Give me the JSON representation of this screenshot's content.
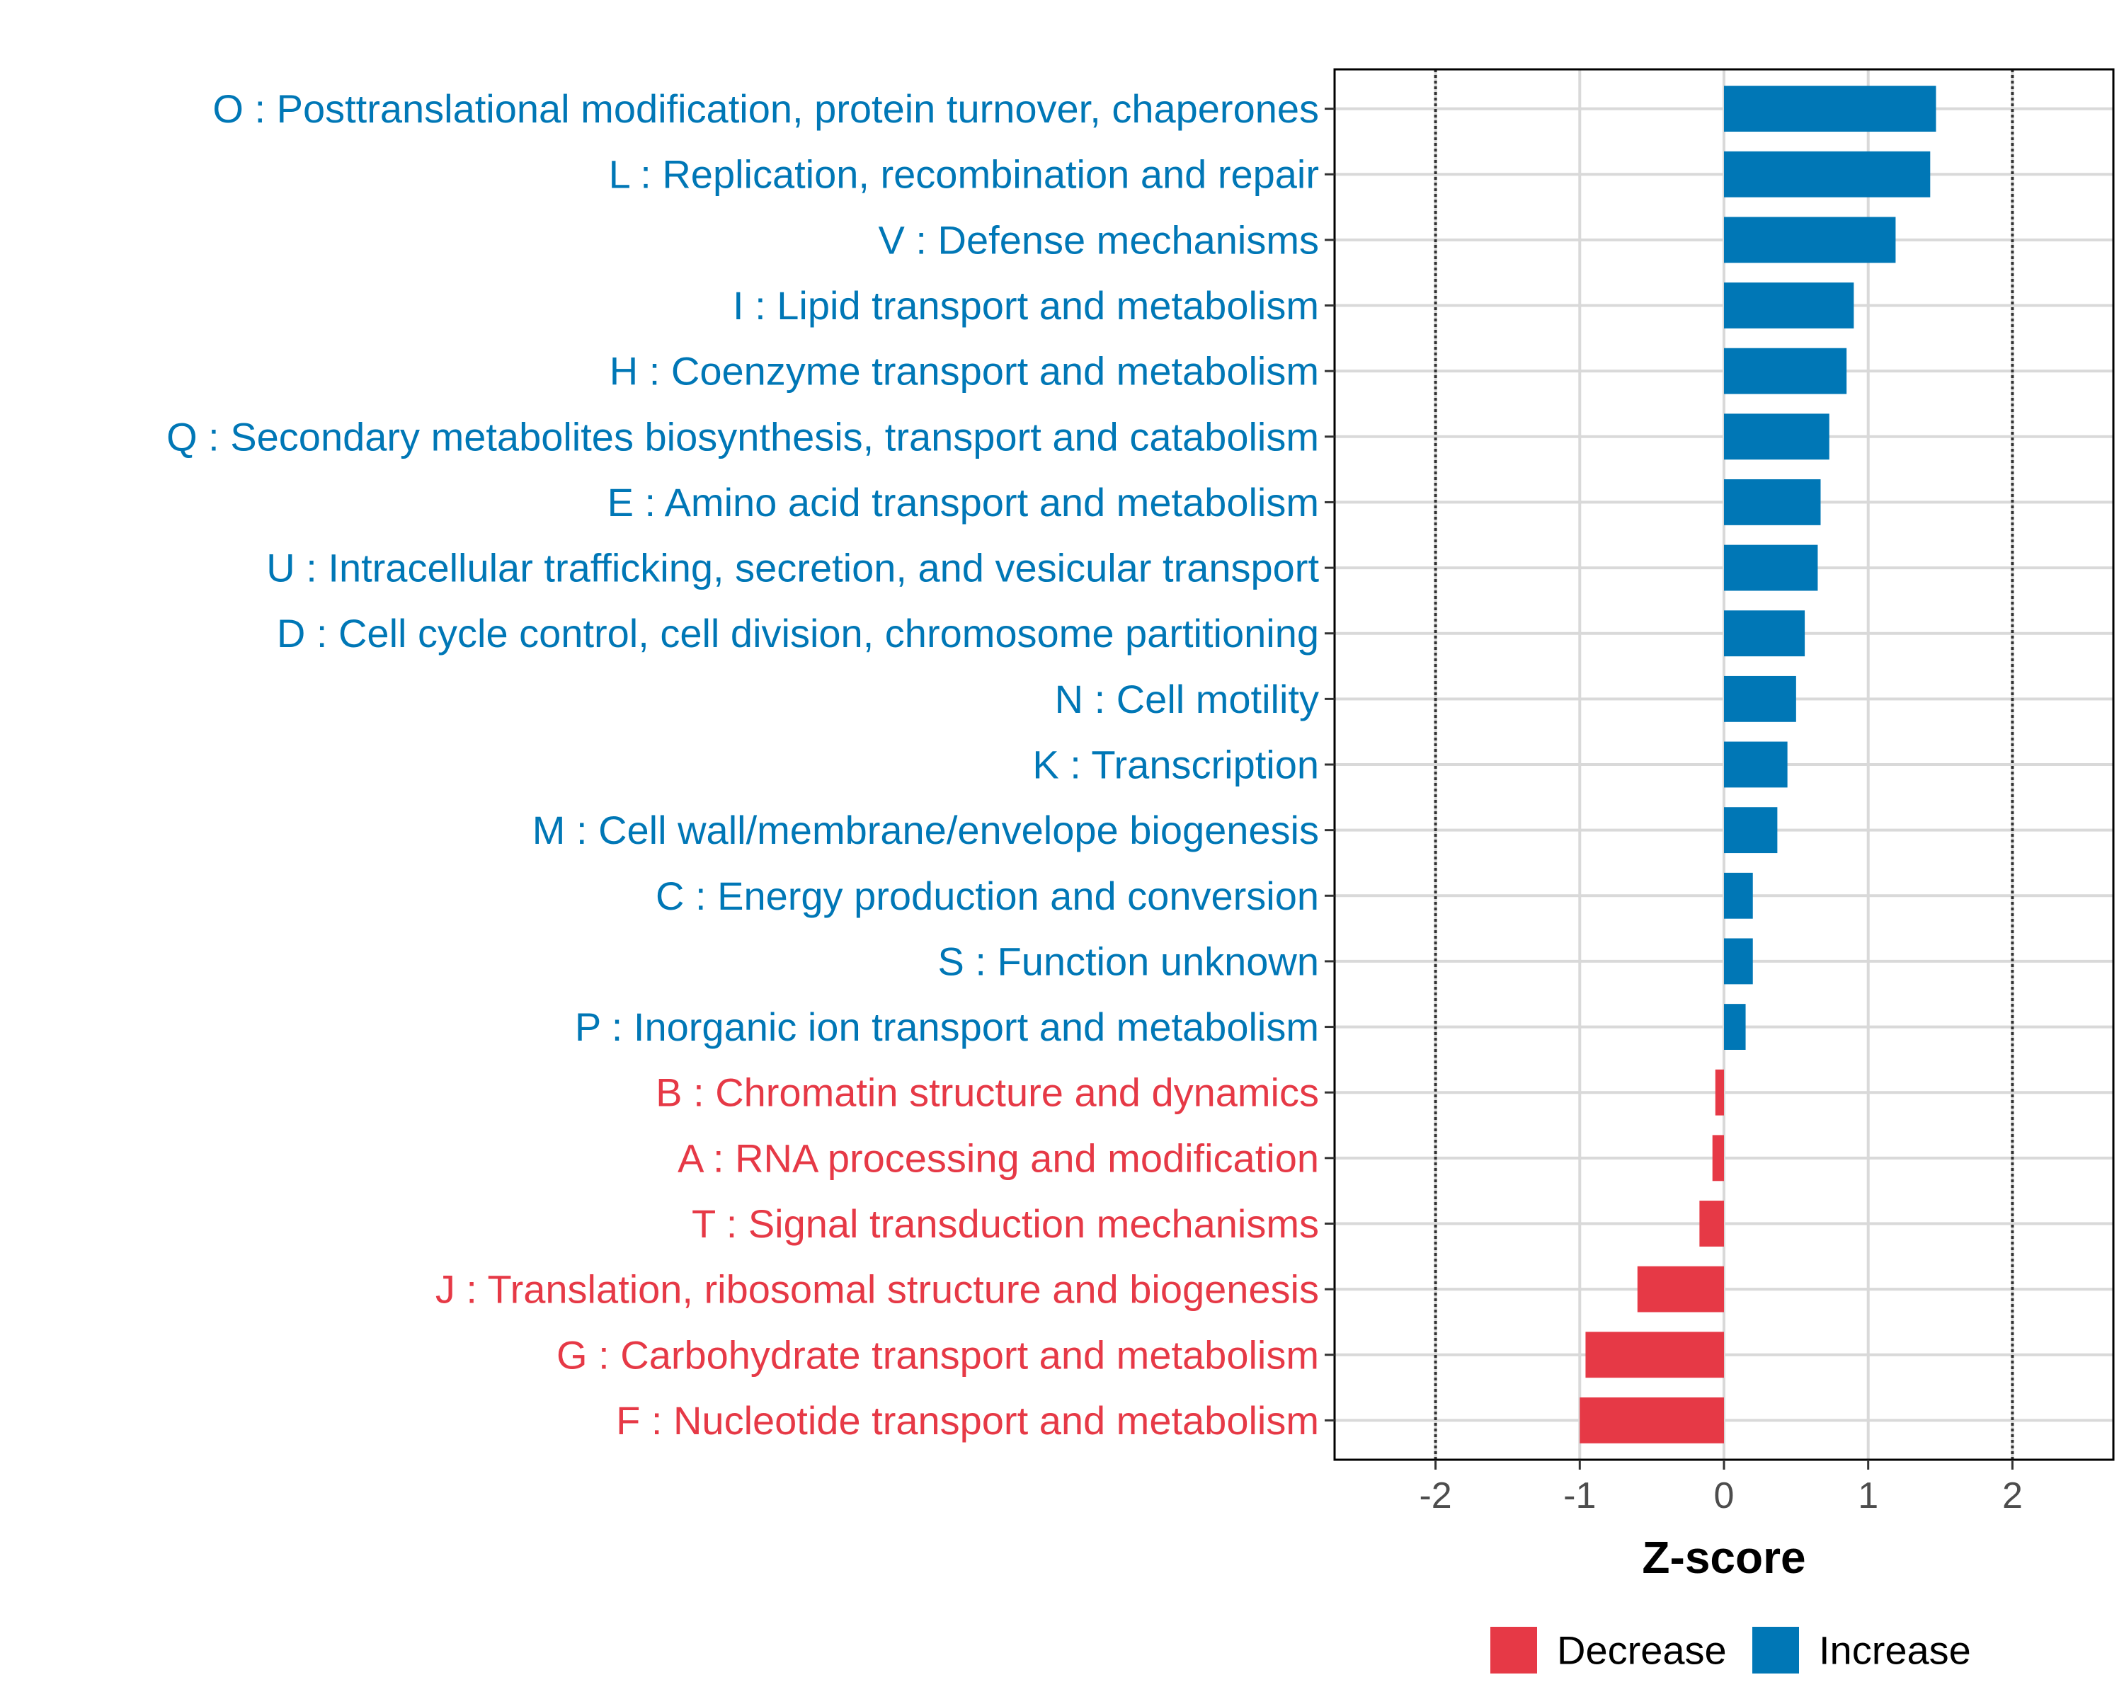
{
  "chart_data": {
    "type": "bar",
    "orientation": "horizontal",
    "title": "",
    "xlabel": "Z-score",
    "ylabel": "",
    "xlim": [
      -2.7,
      2.7
    ],
    "x_ticks": [
      -2,
      -1,
      0,
      1,
      2
    ],
    "x_tick_labels": [
      "-2",
      "-1",
      "0",
      "1",
      "2"
    ],
    "reference_lines": [
      -2,
      2
    ],
    "grid": true,
    "legend_position": "bottom",
    "colors": {
      "Decrease": "#e63946",
      "Increase": "#0077b6"
    },
    "legend": [
      {
        "label": "Decrease",
        "color": "#e63946"
      },
      {
        "label": "Increase",
        "color": "#0077b6"
      }
    ],
    "categories": [
      "O : Posttranslational modification, protein turnover, chaperones",
      "L : Replication, recombination and repair",
      "V : Defense mechanisms",
      "I : Lipid transport and metabolism",
      "H : Coenzyme transport and metabolism",
      "Q : Secondary metabolites biosynthesis, transport and catabolism",
      "E : Amino acid transport and metabolism",
      "U : Intracellular trafficking, secretion, and vesicular transport",
      "D : Cell cycle control, cell division, chromosome partitioning",
      "N : Cell motility",
      "K : Transcription",
      "M : Cell wall/membrane/envelope biogenesis",
      "C : Energy production and conversion",
      "S : Function unknown",
      "P : Inorganic ion transport and metabolism",
      "B : Chromatin structure and dynamics",
      "A : RNA processing and modification",
      "T : Signal transduction mechanisms",
      "J : Translation, ribosomal structure and biogenesis",
      "G : Carbohydrate transport and metabolism",
      "F : Nucleotide transport and metabolism"
    ],
    "values": [
      1.47,
      1.43,
      1.19,
      0.9,
      0.85,
      0.73,
      0.67,
      0.65,
      0.56,
      0.5,
      0.44,
      0.37,
      0.2,
      0.2,
      0.15,
      -0.06,
      -0.08,
      -0.17,
      -0.6,
      -0.96,
      -1.0
    ],
    "groups": [
      "Increase",
      "Increase",
      "Increase",
      "Increase",
      "Increase",
      "Increase",
      "Increase",
      "Increase",
      "Increase",
      "Increase",
      "Increase",
      "Increase",
      "Increase",
      "Increase",
      "Increase",
      "Decrease",
      "Decrease",
      "Decrease",
      "Decrease",
      "Decrease",
      "Decrease"
    ]
  }
}
